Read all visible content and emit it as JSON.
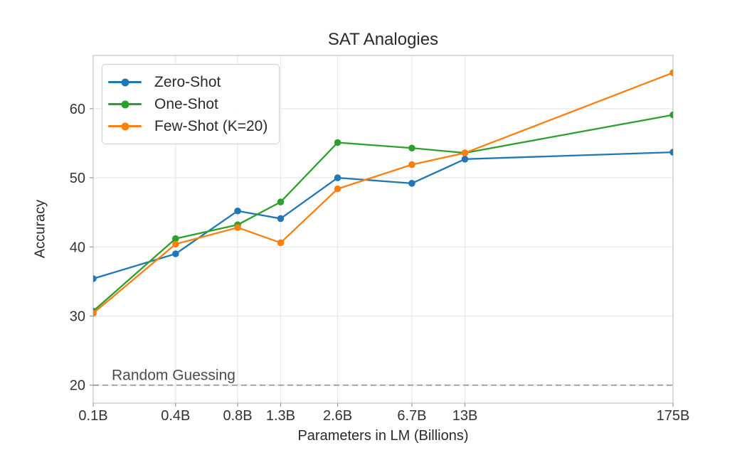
{
  "chart": {
    "title": "SAT Analogies",
    "xlabel": "Parameters in LM (Billions)",
    "ylabel": "Accuracy"
  },
  "chart_data": {
    "type": "line",
    "title": "SAT Analogies",
    "xlabel": "Parameters in LM (Billions)",
    "ylabel": "Accuracy",
    "x_scale": "log",
    "x": [
      0.125,
      0.35,
      0.76,
      1.3,
      2.65,
      6.7,
      13,
      175
    ],
    "x_tick_labels": [
      "0.1B",
      "0.4B",
      "0.8B",
      "1.3B",
      "2.6B",
      "6.7B",
      "13B",
      "175B"
    ],
    "y_ticks": [
      20,
      30,
      40,
      50,
      60
    ],
    "xlim": [
      0.125,
      175
    ],
    "ylim": [
      17.4,
      67.7
    ],
    "grid": true,
    "legend_position": "upper left",
    "series": [
      {
        "name": "Zero-Shot",
        "color": "#1f77b4",
        "values": [
          35.4,
          39.0,
          45.2,
          44.1,
          50.0,
          49.2,
          52.7,
          53.7
        ]
      },
      {
        "name": "One-Shot",
        "color": "#2ca02c",
        "values": [
          30.7,
          41.2,
          43.2,
          46.5,
          55.1,
          54.3,
          53.6,
          59.1
        ]
      },
      {
        "name": "Few-Shot (K=20)",
        "color": "#ff7f0e",
        "values": [
          30.4,
          40.4,
          42.8,
          40.6,
          48.4,
          51.9,
          53.6,
          65.2
        ]
      }
    ],
    "reference_line": {
      "label": "Random Guessing",
      "y": 20,
      "color": "#999999",
      "label_color": "#4d4d4d",
      "style": "dashed"
    }
  },
  "style": {
    "grid_color": "#e7e7e7",
    "spine_color": "#c9c9c9",
    "tick_color": "#999999",
    "tick_label_color": "#333333"
  }
}
